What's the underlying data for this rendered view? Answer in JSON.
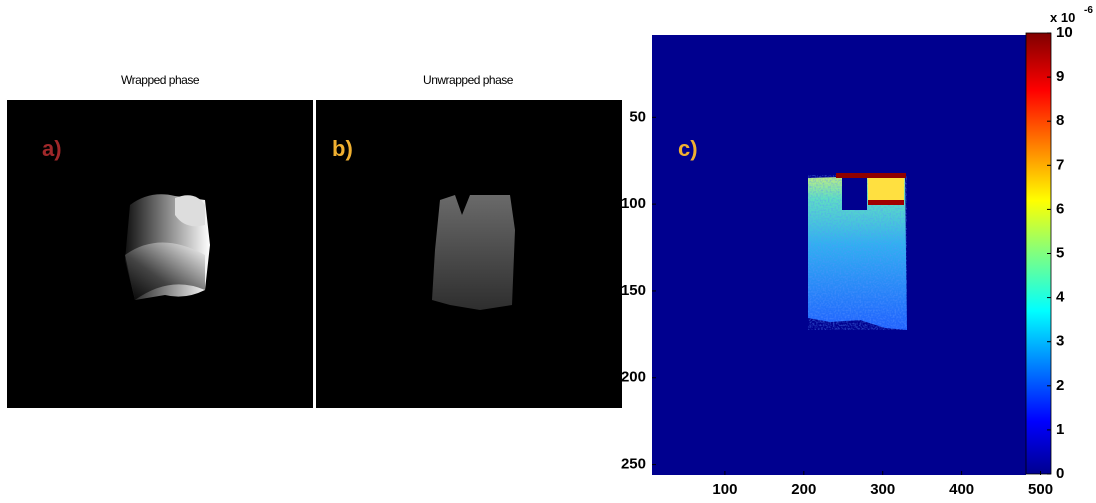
{
  "panels": [
    {
      "title": "Wrapped phase",
      "label": "a)"
    },
    {
      "title": "Unwrapped phase",
      "label": "b)"
    },
    {
      "label": "c)",
      "xlim": [
        0,
        512
      ],
      "xticks": [
        100,
        200,
        300,
        400,
        500
      ],
      "ylim": [
        0,
        256
      ],
      "yticks": [
        50,
        100,
        150,
        200,
        250
      ],
      "colorbar": {
        "lim": [
          0,
          10
        ],
        "ticks": [
          0,
          1,
          2,
          3,
          4,
          5,
          6,
          7,
          8,
          9,
          10
        ],
        "multiplier": "x 10",
        "exponent": "-6"
      }
    }
  ]
}
